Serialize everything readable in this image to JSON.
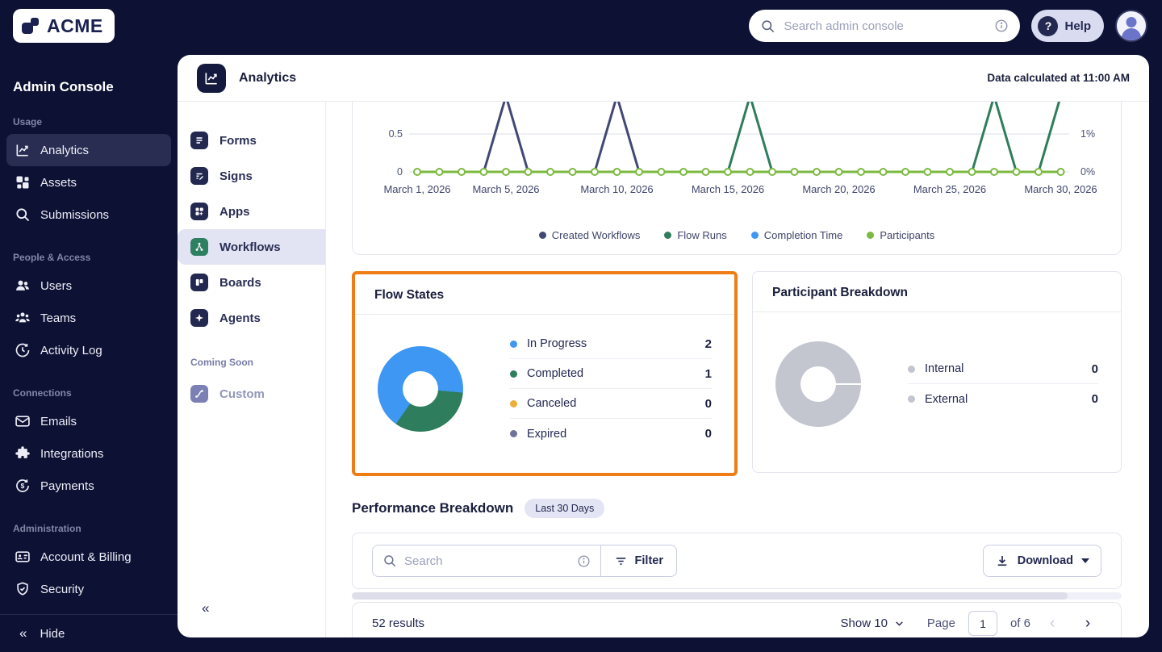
{
  "topbar": {
    "logo_text": "ACME",
    "search_placeholder": "Search admin console",
    "help_label": "Help"
  },
  "sidebar": {
    "title": "Admin Console",
    "sections": [
      {
        "label": "Usage",
        "items": [
          {
            "label": "Analytics",
            "icon": "analytics-icon",
            "selected": true
          },
          {
            "label": "Assets",
            "icon": "assets-icon",
            "selected": false
          },
          {
            "label": "Submissions",
            "icon": "submissions-icon",
            "selected": false
          }
        ]
      },
      {
        "label": "People & Access",
        "items": [
          {
            "label": "Users",
            "icon": "users-icon",
            "selected": false
          },
          {
            "label": "Teams",
            "icon": "teams-icon",
            "selected": false
          },
          {
            "label": "Activity Log",
            "icon": "activity-log-icon",
            "selected": false
          }
        ]
      },
      {
        "label": "Connections",
        "items": [
          {
            "label": "Emails",
            "icon": "emails-icon",
            "selected": false
          },
          {
            "label": "Integrations",
            "icon": "integrations-icon",
            "selected": false
          },
          {
            "label": "Payments",
            "icon": "payments-icon",
            "selected": false
          }
        ]
      },
      {
        "label": "Administration",
        "items": [
          {
            "label": "Account & Billing",
            "icon": "account-billing-icon",
            "selected": false
          },
          {
            "label": "Security",
            "icon": "security-icon",
            "selected": false
          }
        ]
      }
    ],
    "hide_label": "Hide"
  },
  "panel": {
    "title": "Analytics",
    "note": "Data calculated at 11:00 AM"
  },
  "subnav": {
    "items": [
      {
        "label": "Forms",
        "icon": "forms-icon",
        "selected": false
      },
      {
        "label": "Signs",
        "icon": "signs-icon",
        "selected": false
      },
      {
        "label": "Apps",
        "icon": "apps-icon",
        "selected": false
      },
      {
        "label": "Workflows",
        "icon": "workflows-icon",
        "selected": true
      },
      {
        "label": "Boards",
        "icon": "boards-icon",
        "selected": false
      },
      {
        "label": "Agents",
        "icon": "agents-icon",
        "selected": false
      }
    ],
    "coming_soon_label": "Coming Soon",
    "coming_soon_items": [
      {
        "label": "Custom",
        "icon": "custom-icon"
      }
    ]
  },
  "chart_data": {
    "type": "line",
    "x_range": [
      "March 1, 2026",
      "March 30, 2026"
    ],
    "x_ticks": [
      {
        "day": 1,
        "label": "March 1, 2026"
      },
      {
        "day": 5,
        "label": "March 5, 2026"
      },
      {
        "day": 10,
        "label": "March 10, 2026"
      },
      {
        "day": 15,
        "label": "March 15, 2026"
      },
      {
        "day": 20,
        "label": "March 20, 2026"
      },
      {
        "day": 25,
        "label": "March 25, 2026"
      },
      {
        "day": 30,
        "label": "March 30, 2026"
      }
    ],
    "left_ticks": [
      {
        "value": 0.5,
        "label": "0.5"
      },
      {
        "value": 0,
        "label": "0"
      }
    ],
    "right_ticks": [
      {
        "value": 0.5,
        "label": "1%"
      },
      {
        "value": 0,
        "label": "0%"
      }
    ],
    "series": [
      {
        "name": "Created Workflows",
        "color": "#424875",
        "markers": false,
        "values": [
          0,
          0,
          0,
          0,
          1,
          0,
          0,
          0,
          0,
          1,
          0,
          0,
          0,
          0,
          0,
          0,
          0,
          0,
          0,
          0,
          0,
          0,
          0,
          0,
          0,
          0,
          0,
          0,
          0,
          0
        ]
      },
      {
        "name": "Flow Runs",
        "color": "#2E7D5C",
        "markers": false,
        "values": [
          0,
          0,
          0,
          0,
          0,
          0,
          0,
          0,
          0,
          0,
          0,
          0,
          0,
          0,
          0,
          1,
          0,
          0,
          0,
          0,
          0,
          0,
          0,
          0,
          0,
          0,
          1,
          0,
          0,
          1
        ]
      },
      {
        "name": "Completion Time",
        "color": "#3E97F3",
        "markers": false,
        "values": [
          0,
          0,
          0,
          0,
          0,
          0,
          0,
          0,
          0,
          0,
          0,
          0,
          0,
          0,
          0,
          0,
          0,
          0,
          0,
          0,
          0,
          0,
          0,
          0,
          0,
          0,
          0,
          0,
          0,
          0
        ]
      },
      {
        "name": "Participants",
        "color": "#7CB93F",
        "markers": true,
        "values": [
          0,
          0,
          0,
          0,
          0,
          0,
          0,
          0,
          0,
          0,
          0,
          0,
          0,
          0,
          0,
          0,
          0,
          0,
          0,
          0,
          0,
          0,
          0,
          0,
          0,
          0,
          0,
          0,
          0,
          0
        ]
      }
    ],
    "legend_position": "bottom",
    "grid": true
  },
  "flow_states": {
    "title": "Flow States",
    "accent_border_color": "#EF7D16",
    "donut_start_deg": 215,
    "items": [
      {
        "label": "In Progress",
        "value": 2,
        "color": "#3E97F3"
      },
      {
        "label": "Completed",
        "value": 1,
        "color": "#2E7D5C"
      },
      {
        "label": "Canceled",
        "value": 0,
        "color": "#EDAF3C"
      },
      {
        "label": "Expired",
        "value": 0,
        "color": "#6F739C"
      }
    ]
  },
  "participant_breakdown": {
    "title": "Participant Breakdown",
    "empty_color": "#C3C5CF",
    "items": [
      {
        "label": "Internal",
        "value": 0,
        "color": "#C3C5CF"
      },
      {
        "label": "External",
        "value": 0,
        "color": "#C3C5CF"
      }
    ]
  },
  "performance": {
    "title": "Performance Breakdown",
    "badge": "Last 30 Days",
    "search_placeholder": "Search",
    "filter_label": "Filter",
    "download_label": "Download",
    "results_text": "52 results",
    "show_label": "Show 10",
    "page_label": "Page",
    "page_value": "1",
    "of_label": "of 6"
  }
}
